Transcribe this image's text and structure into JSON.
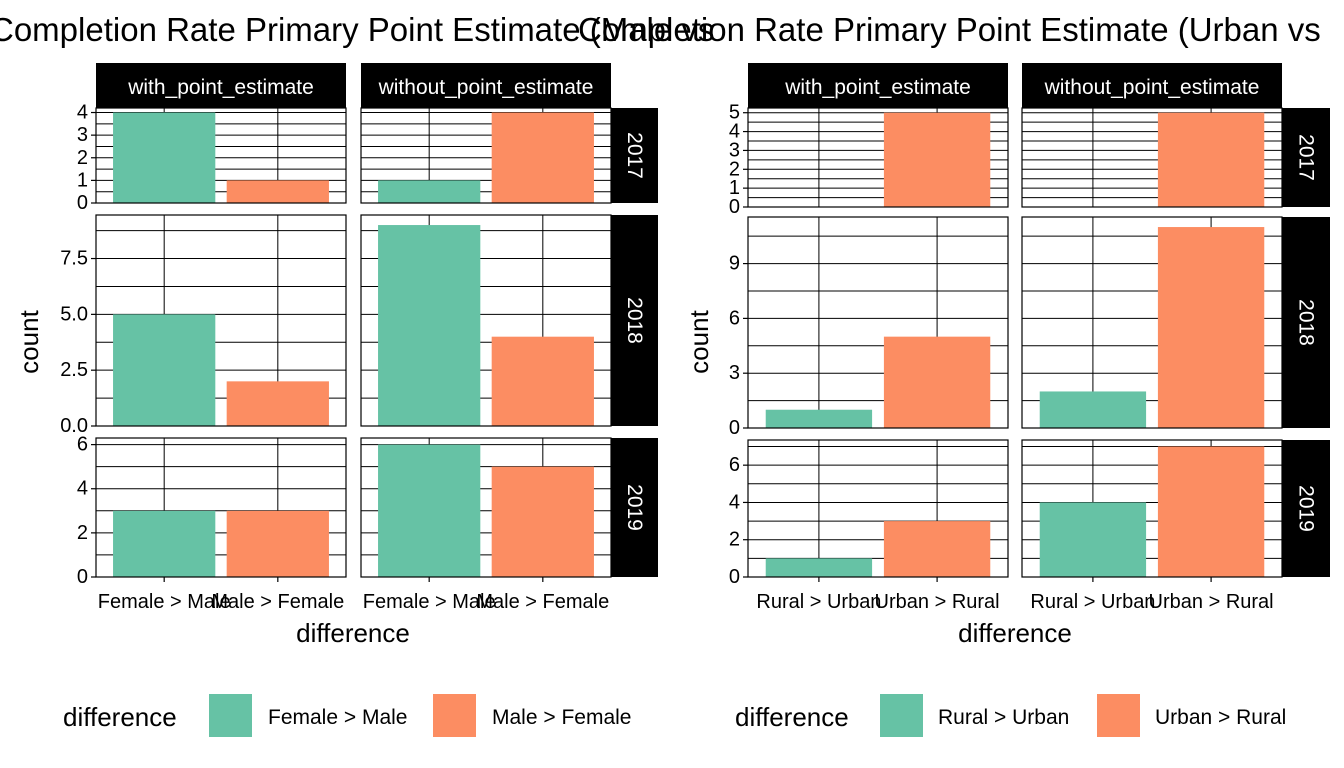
{
  "chart_data": [
    {
      "type": "bar",
      "title": "Completion Rate Primary Point Estimate (Male vs",
      "xlabel": "difference",
      "ylabel": "count",
      "facet_cols": [
        "with_point_estimate",
        "without_point_estimate"
      ],
      "facet_rows": [
        "2017",
        "2018",
        "2019"
      ],
      "categories": [
        "Female > Male",
        "Male > Female"
      ],
      "colors": [
        "#66c2a5",
        "#fc8d62"
      ],
      "legend": {
        "title": "difference",
        "position": "bottom",
        "entries": [
          "Female > Male",
          "Male > Female"
        ]
      },
      "grid": true,
      "rows": [
        {
          "ylim": [
            0,
            4.2
          ],
          "ticks": [
            0,
            1,
            2,
            3,
            4
          ],
          "tick_labels": [
            "0",
            "1",
            "2",
            "3",
            "4"
          ],
          "minor_ticks": [
            0.5,
            1.5,
            2.5,
            3.5
          ],
          "panels": [
            [
              4,
              1
            ],
            [
              1,
              4
            ]
          ]
        },
        {
          "ylim": [
            0,
            9.45
          ],
          "ticks": [
            0,
            2.5,
            5,
            7.5
          ],
          "tick_labels": [
            "0.0",
            "2.5",
            "5.0",
            "7.5"
          ],
          "minor_ticks": [
            1.25,
            3.75,
            6.25,
            8.75
          ],
          "panels": [
            [
              5,
              2
            ],
            [
              9,
              4
            ]
          ]
        },
        {
          "ylim": [
            0,
            6.3
          ],
          "ticks": [
            0,
            2,
            4,
            6
          ],
          "tick_labels": [
            "0",
            "2",
            "4",
            "6"
          ],
          "minor_ticks": [
            1,
            3,
            5
          ],
          "panels": [
            [
              3,
              3
            ],
            [
              6,
              5
            ]
          ]
        }
      ]
    },
    {
      "type": "bar",
      "title": "Completion Rate Primary Point Estimate (Urban vs",
      "xlabel": "difference",
      "ylabel": "count",
      "facet_cols": [
        "with_point_estimate",
        "without_point_estimate"
      ],
      "facet_rows": [
        "2017",
        "2018",
        "2019"
      ],
      "categories": [
        "Rural > Urban",
        "Urban > Rural"
      ],
      "colors": [
        "#66c2a5",
        "#fc8d62"
      ],
      "legend": {
        "title": "difference",
        "position": "bottom",
        "entries": [
          "Rural > Urban",
          "Urban > Rural"
        ]
      },
      "grid": true,
      "rows": [
        {
          "ylim": [
            0,
            5.25
          ],
          "ticks": [
            0,
            1,
            2,
            3,
            4,
            5
          ],
          "tick_labels": [
            "0",
            "1",
            "2",
            "3",
            "4",
            "5"
          ],
          "minor_ticks": [
            0.5,
            1.5,
            2.5,
            3.5,
            4.5
          ],
          "panels": [
            [
              0,
              5
            ],
            [
              0,
              5
            ]
          ]
        },
        {
          "ylim": [
            0,
            11.55
          ],
          "ticks": [
            0,
            3,
            6,
            9
          ],
          "tick_labels": [
            "0",
            "3",
            "6",
            "9"
          ],
          "minor_ticks": [
            1.5,
            4.5,
            7.5,
            10.5
          ],
          "panels": [
            [
              1,
              5
            ],
            [
              2,
              11
            ]
          ]
        },
        {
          "ylim": [
            0,
            7.35
          ],
          "ticks": [
            0,
            2,
            4,
            6
          ],
          "tick_labels": [
            "0",
            "2",
            "4",
            "6"
          ],
          "minor_ticks": [
            1,
            3,
            5,
            7
          ],
          "panels": [
            [
              1,
              3
            ],
            [
              4,
              7
            ]
          ]
        }
      ]
    }
  ]
}
